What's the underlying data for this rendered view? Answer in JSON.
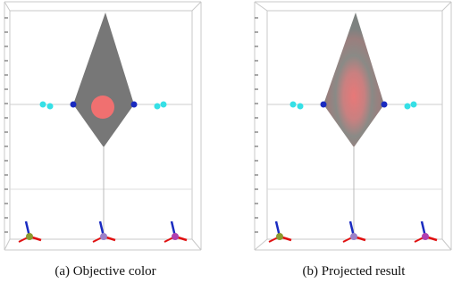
{
  "panels": [
    {
      "caption": "(a) Objective color"
    },
    {
      "caption": "(b) Projected result"
    }
  ]
}
